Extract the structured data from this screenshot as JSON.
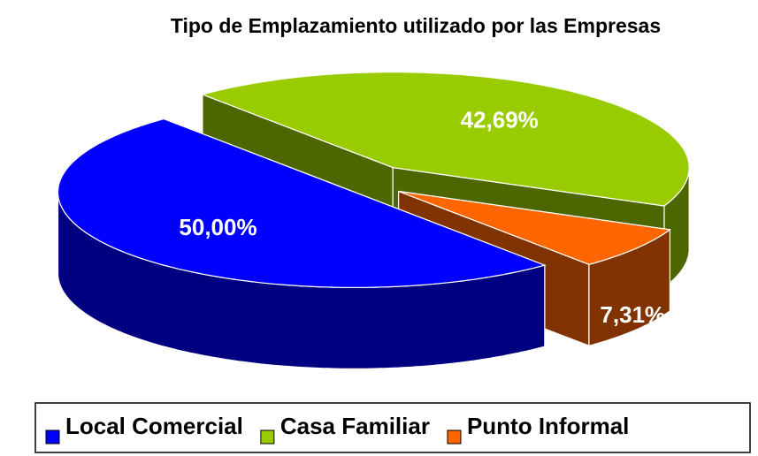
{
  "chart_data": {
    "type": "pie",
    "title": "Tipo de Emplazamiento utilizado por las Empresas",
    "categories": [
      "Local Comercial",
      "Casa Familiar",
      "Punto Informal"
    ],
    "values": [
      50,
      42.69,
      7.31
    ],
    "value_labels": [
      "50,00%",
      "42,69%",
      "7,31%"
    ],
    "colors": [
      "#0000ff",
      "#99cc00",
      "#ff6600"
    ],
    "legend": "bottom"
  }
}
